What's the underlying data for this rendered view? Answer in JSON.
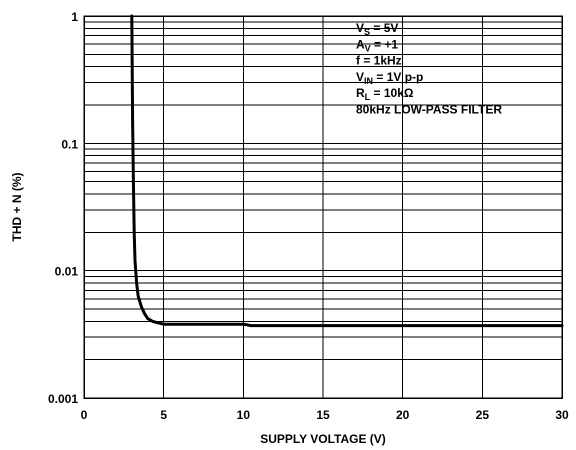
{
  "chart_data": {
    "type": "line",
    "title": "",
    "xlabel": "SUPPLY VOLTAGE (V)",
    "ylabel": "THD + N (%)",
    "xlim": [
      0,
      30
    ],
    "ylim": [
      0.001,
      1
    ],
    "yscale": "log",
    "grid": true,
    "x_ticks": [
      "0",
      "5",
      "10",
      "15",
      "20",
      "25",
      "30"
    ],
    "y_ticks": [
      "0.001",
      "0.01",
      "0.1",
      "1"
    ],
    "annotations": [
      {
        "main": "V",
        "sub": "S",
        "rest": " = 5V"
      },
      {
        "main": "A",
        "sub": "V",
        "rest": " = +1"
      },
      {
        "main": "f = 1kHz",
        "sub": "",
        "rest": ""
      },
      {
        "main": "V",
        "sub": "IN",
        "rest": " = 1V p-p"
      },
      {
        "main": "R",
        "sub": "L",
        "rest": " = 10kΩ"
      },
      {
        "main": "80kHz LOW-PASS FILTER",
        "sub": "",
        "rest": ""
      }
    ],
    "series": [
      {
        "x": [
          3.0,
          3.02,
          3.05,
          3.1,
          3.15,
          3.2,
          3.3,
          3.4,
          3.6,
          3.8,
          4.0,
          4.3,
          4.6,
          5.0,
          6.0,
          8.0,
          10.0,
          10.5,
          15.0,
          20.0,
          25.0,
          30.0
        ],
        "y": [
          1.0,
          0.5,
          0.15,
          0.05,
          0.02,
          0.012,
          0.008,
          0.0063,
          0.0052,
          0.0046,
          0.0042,
          0.004,
          0.0039,
          0.0038,
          0.0038,
          0.0038,
          0.0038,
          0.0037,
          0.0037,
          0.0037,
          0.0037,
          0.0037
        ]
      }
    ]
  }
}
